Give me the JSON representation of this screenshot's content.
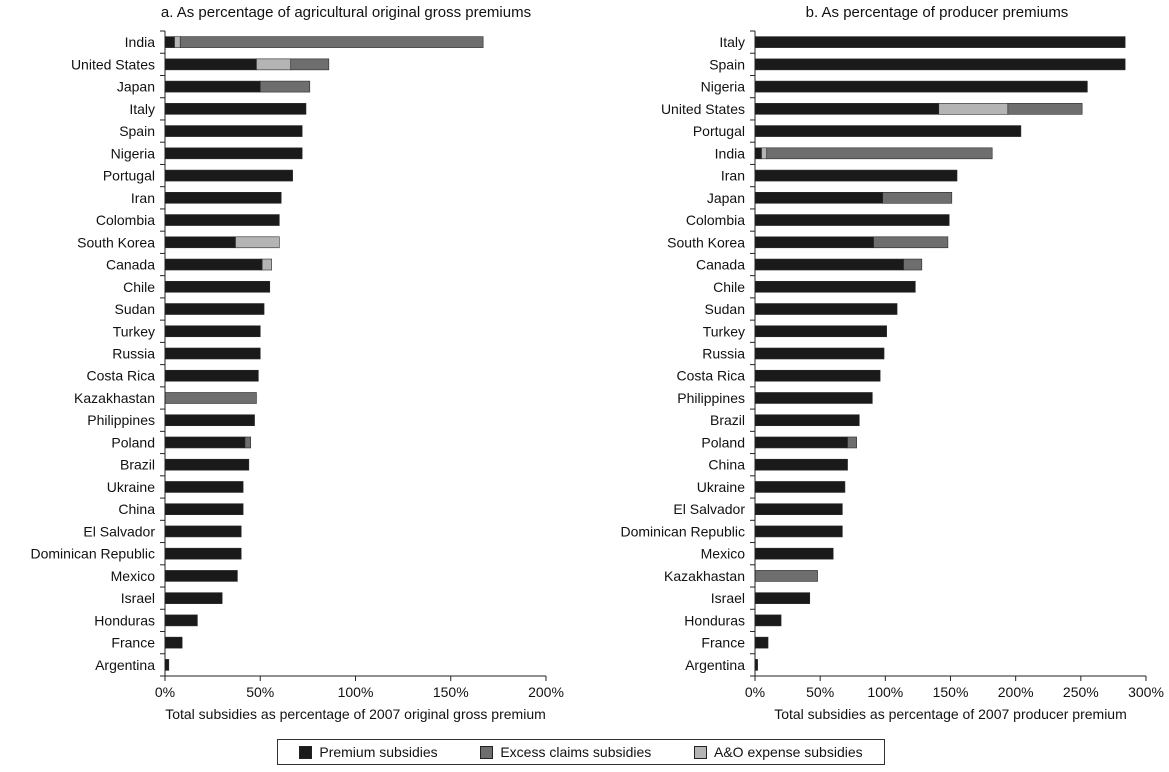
{
  "colors": {
    "premium": "#1a1a1a",
    "excess_claims": "#6e6e6e",
    "ao_expense": "#b4b4b4",
    "axis": "#222222"
  },
  "legend": [
    {
      "key": "premium",
      "label": "Premium subsidies"
    },
    {
      "key": "excess_claims",
      "label": "Excess claims subsidies"
    },
    {
      "key": "ao_expense",
      "label": "A&O expense subsidies"
    }
  ],
  "chart_data": [
    {
      "type": "bar",
      "orientation": "horizontal",
      "stacked": true,
      "title": "a. As percentage of agricultural original gross premiums",
      "xlabel": "Total subsidies as percentage of 2007 original gross premium",
      "ylabel": "",
      "xlim": [
        0,
        200
      ],
      "xticks": [
        0,
        50,
        100,
        150,
        200
      ],
      "xtick_labels": [
        "0%",
        "50%",
        "100%",
        "150%",
        "200%"
      ],
      "grid": false,
      "legend_position": "bottom-center",
      "categories": [
        "India",
        "United States",
        "Japan",
        "Italy",
        "Spain",
        "Nigeria",
        "Portugal",
        "Iran",
        "Colombia",
        "South Korea",
        "Canada",
        "Chile",
        "Sudan",
        "Turkey",
        "Russia",
        "Costa Rica",
        "Kazakhastan",
        "Philippines",
        "Poland",
        "Brazil",
        "Ukraine",
        "China",
        "El Salvador",
        "Dominican Republic",
        "Mexico",
        "Israel",
        "Honduras",
        "France",
        "Argentina"
      ],
      "series": [
        {
          "name": "Premium subsidies",
          "key": "premium",
          "values": [
            5,
            48,
            50,
            74,
            72,
            72,
            67,
            61,
            60,
            37,
            51,
            55,
            52,
            50,
            50,
            49,
            0,
            47,
            42,
            44,
            41,
            41,
            40,
            40,
            38,
            30,
            17,
            9,
            2
          ]
        },
        {
          "name": "A&O expense subsidies",
          "key": "ao_expense",
          "values": [
            3,
            18,
            0,
            0,
            0,
            0,
            0,
            0,
            0,
            23,
            5,
            0,
            0,
            0,
            0,
            0,
            0,
            0,
            0,
            0,
            0,
            0,
            0,
            0,
            0,
            0,
            0,
            0,
            0
          ]
        },
        {
          "name": "Excess claims subsidies",
          "key": "excess_claims",
          "values": [
            159,
            20,
            26,
            0,
            0,
            0,
            0,
            0,
            0,
            0,
            0,
            0,
            0,
            0,
            0,
            0,
            48,
            0,
            3,
            0,
            0,
            0,
            0,
            0,
            0,
            0,
            0,
            0,
            0
          ]
        }
      ]
    },
    {
      "type": "bar",
      "orientation": "horizontal",
      "stacked": true,
      "title": "b. As percentage of producer premiums",
      "xlabel": "Total subsidies as percentage of 2007 producer premium",
      "ylabel": "",
      "xlim": [
        0,
        300
      ],
      "xticks": [
        0,
        50,
        100,
        150,
        200,
        250,
        300
      ],
      "xtick_labels": [
        "0%",
        "50%",
        "100%",
        "150%",
        "200%",
        "250%",
        "300%"
      ],
      "grid": false,
      "legend_position": "bottom-center",
      "categories": [
        "Italy",
        "Spain",
        "Nigeria",
        "United States",
        "Portugal",
        "India",
        "Iran",
        "Japan",
        "Colombia",
        "South Korea",
        "Canada",
        "Chile",
        "Sudan",
        "Turkey",
        "Russia",
        "Costa Rica",
        "Philippines",
        "Brazil",
        "Poland",
        "China",
        "Ukraine",
        "El Salvador",
        "Dominican Republic",
        "Mexico",
        "Kazakhastan",
        "Israel",
        "Honduras",
        "France",
        "Argentina"
      ],
      "series": [
        {
          "name": "Premium subsidies",
          "key": "premium",
          "values": [
            284,
            284,
            255,
            141,
            204,
            5,
            155,
            98,
            149,
            91,
            114,
            123,
            109,
            101,
            99,
            96,
            90,
            80,
            71,
            71,
            69,
            67,
            67,
            60,
            0,
            42,
            20,
            10,
            2
          ]
        },
        {
          "name": "A&O expense subsidies",
          "key": "ao_expense",
          "values": [
            0,
            0,
            0,
            53,
            0,
            4,
            0,
            0,
            0,
            0,
            0,
            0,
            0,
            0,
            0,
            0,
            0,
            0,
            0,
            0,
            0,
            0,
            0,
            0,
            0,
            0,
            0,
            0,
            0
          ]
        },
        {
          "name": "Excess claims subsidies",
          "key": "excess_claims",
          "values": [
            0,
            0,
            0,
            57,
            0,
            173,
            0,
            53,
            0,
            57,
            14,
            0,
            0,
            0,
            0,
            0,
            0,
            0,
            7,
            0,
            0,
            0,
            0,
            0,
            48,
            0,
            0,
            0,
            0
          ]
        }
      ]
    }
  ]
}
